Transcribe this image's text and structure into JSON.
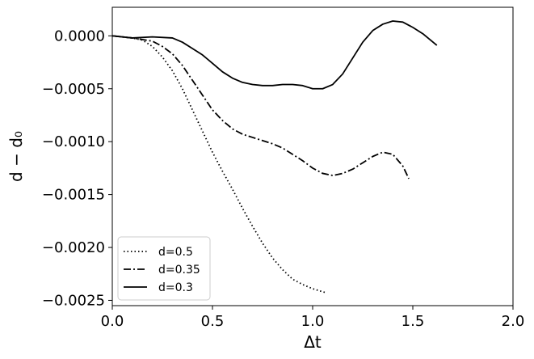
{
  "chart_data": {
    "type": "line",
    "title": "",
    "xlabel": "Δt",
    "ylabel": "d − d₀",
    "xlim": [
      0.0,
      2.0
    ],
    "ylim": [
      -0.00255,
      0.00027
    ],
    "grid": false,
    "legend_position": "bottom-left",
    "x_ticks": [
      {
        "value": 0.0,
        "label": "0.0"
      },
      {
        "value": 0.5,
        "label": "0.5"
      },
      {
        "value": 1.0,
        "label": "1.0"
      },
      {
        "value": 1.5,
        "label": "1.5"
      },
      {
        "value": 2.0,
        "label": "2.0"
      }
    ],
    "y_ticks": [
      {
        "value": 0.0,
        "label": "0.0000"
      },
      {
        "value": -0.0005,
        "label": "−0.0005"
      },
      {
        "value": -0.001,
        "label": "−0.0010"
      },
      {
        "value": -0.0015,
        "label": "−0.0015"
      },
      {
        "value": -0.002,
        "label": "−0.0020"
      },
      {
        "value": -0.0025,
        "label": "−0.0025"
      }
    ],
    "series": [
      {
        "name": "d=0.5",
        "style": "dotted",
        "color": "#000000",
        "points": [
          [
            0.0,
            0.0
          ],
          [
            0.05,
            -1e-05
          ],
          [
            0.1,
            -2e-05
          ],
          [
            0.15,
            -4e-05
          ],
          [
            0.2,
            -0.0001
          ],
          [
            0.25,
            -0.0002
          ],
          [
            0.3,
            -0.00033
          ],
          [
            0.35,
            -0.0005
          ],
          [
            0.4,
            -0.0007
          ],
          [
            0.45,
            -0.0009
          ],
          [
            0.5,
            -0.0011
          ],
          [
            0.55,
            -0.00128
          ],
          [
            0.6,
            -0.00145
          ],
          [
            0.65,
            -0.00163
          ],
          [
            0.7,
            -0.0018
          ],
          [
            0.75,
            -0.00196
          ],
          [
            0.8,
            -0.0021
          ],
          [
            0.85,
            -0.00221
          ],
          [
            0.9,
            -0.0023
          ],
          [
            0.95,
            -0.00235
          ],
          [
            1.0,
            -0.00239
          ],
          [
            1.07,
            -0.00243
          ]
        ]
      },
      {
        "name": "d=0.35",
        "style": "dashdot",
        "color": "#000000",
        "points": [
          [
            0.0,
            0.0
          ],
          [
            0.1,
            -2e-05
          ],
          [
            0.2,
            -5e-05
          ],
          [
            0.25,
            -0.0001
          ],
          [
            0.3,
            -0.00017
          ],
          [
            0.35,
            -0.00028
          ],
          [
            0.4,
            -0.00042
          ],
          [
            0.45,
            -0.00056
          ],
          [
            0.5,
            -0.0007
          ],
          [
            0.55,
            -0.0008
          ],
          [
            0.6,
            -0.00088
          ],
          [
            0.65,
            -0.00093
          ],
          [
            0.7,
            -0.00096
          ],
          [
            0.75,
            -0.00099
          ],
          [
            0.8,
            -0.00102
          ],
          [
            0.85,
            -0.00106
          ],
          [
            0.9,
            -0.00112
          ],
          [
            0.95,
            -0.00118
          ],
          [
            1.0,
            -0.00125
          ],
          [
            1.05,
            -0.0013
          ],
          [
            1.1,
            -0.00132
          ],
          [
            1.15,
            -0.0013
          ],
          [
            1.2,
            -0.00126
          ],
          [
            1.25,
            -0.0012
          ],
          [
            1.3,
            -0.00114
          ],
          [
            1.35,
            -0.0011
          ],
          [
            1.4,
            -0.00112
          ],
          [
            1.45,
            -0.00123
          ],
          [
            1.48,
            -0.00135
          ]
        ]
      },
      {
        "name": "d=0.3",
        "style": "solid",
        "color": "#000000",
        "points": [
          [
            0.0,
            0.0
          ],
          [
            0.1,
            -2e-05
          ],
          [
            0.2,
            -1e-05
          ],
          [
            0.3,
            -2e-05
          ],
          [
            0.35,
            -6e-05
          ],
          [
            0.4,
            -0.00012
          ],
          [
            0.45,
            -0.00018
          ],
          [
            0.5,
            -0.00026
          ],
          [
            0.55,
            -0.00034
          ],
          [
            0.6,
            -0.0004
          ],
          [
            0.65,
            -0.00044
          ],
          [
            0.7,
            -0.00046
          ],
          [
            0.75,
            -0.00047
          ],
          [
            0.8,
            -0.00047
          ],
          [
            0.85,
            -0.00046
          ],
          [
            0.9,
            -0.00046
          ],
          [
            0.95,
            -0.00047
          ],
          [
            1.0,
            -0.0005
          ],
          [
            1.05,
            -0.0005
          ],
          [
            1.1,
            -0.00046
          ],
          [
            1.15,
            -0.00036
          ],
          [
            1.2,
            -0.00021
          ],
          [
            1.25,
            -6e-05
          ],
          [
            1.3,
            5e-05
          ],
          [
            1.35,
            0.00011
          ],
          [
            1.4,
            0.00014
          ],
          [
            1.45,
            0.00013
          ],
          [
            1.5,
            8e-05
          ],
          [
            1.55,
            2e-05
          ],
          [
            1.62,
            -9e-05
          ]
        ]
      }
    ]
  }
}
